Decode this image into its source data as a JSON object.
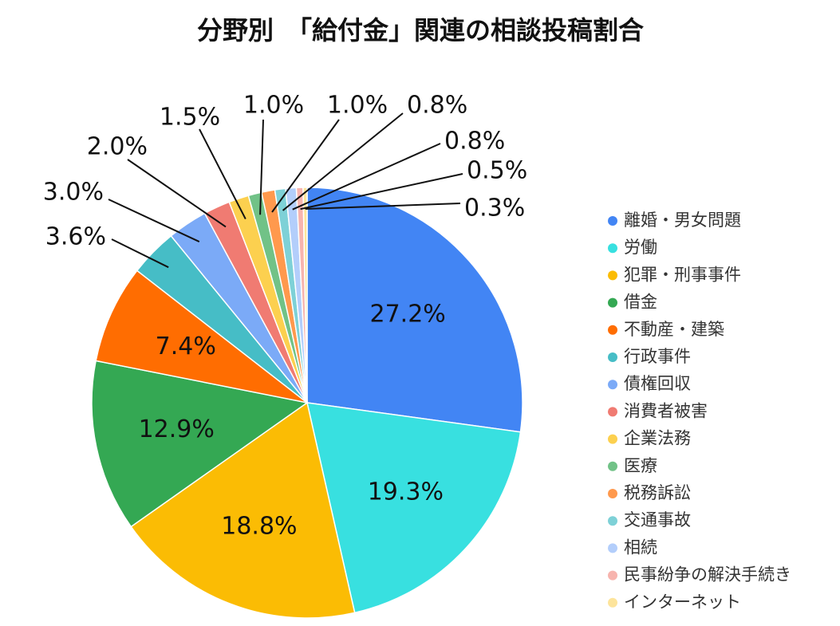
{
  "chart_data": {
    "type": "pie",
    "title": "分野別　「給付金」関連の相談投稿割合",
    "categories": [
      "離婚・男女問題",
      "労働",
      "犯罪・刑事事件",
      "借金",
      "不動産・建築",
      "行政事件",
      "債権回収",
      "消費者被害",
      "企業法務",
      "医療",
      "税務訴訟",
      "交通事故",
      "相続",
      "民事紛争の解決手続き",
      "インターネット"
    ],
    "values": [
      27.2,
      19.3,
      18.8,
      12.9,
      7.4,
      3.6,
      3.0,
      2.0,
      1.5,
      1.0,
      1.0,
      0.8,
      0.8,
      0.5,
      0.3
    ],
    "value_labels": [
      "27.2%",
      "19.3%",
      "18.8%",
      "12.9%",
      "7.4%",
      "3.6%",
      "3.0%",
      "2.0%",
      "1.5%",
      "1.0%",
      "1.0%",
      "0.8%",
      "0.8%",
      "0.5%",
      "0.3%"
    ],
    "colors": [
      "#4285f4",
      "#38e0e0",
      "#fbbc04",
      "#34a853",
      "#ff6d01",
      "#46bdc6",
      "#7baaf7",
      "#f07b72",
      "#fcd04f",
      "#71c287",
      "#ff994d",
      "#7ed1d7",
      "#b3cefb",
      "#f7b4ae",
      "#fde49b"
    ],
    "legend": "right"
  }
}
